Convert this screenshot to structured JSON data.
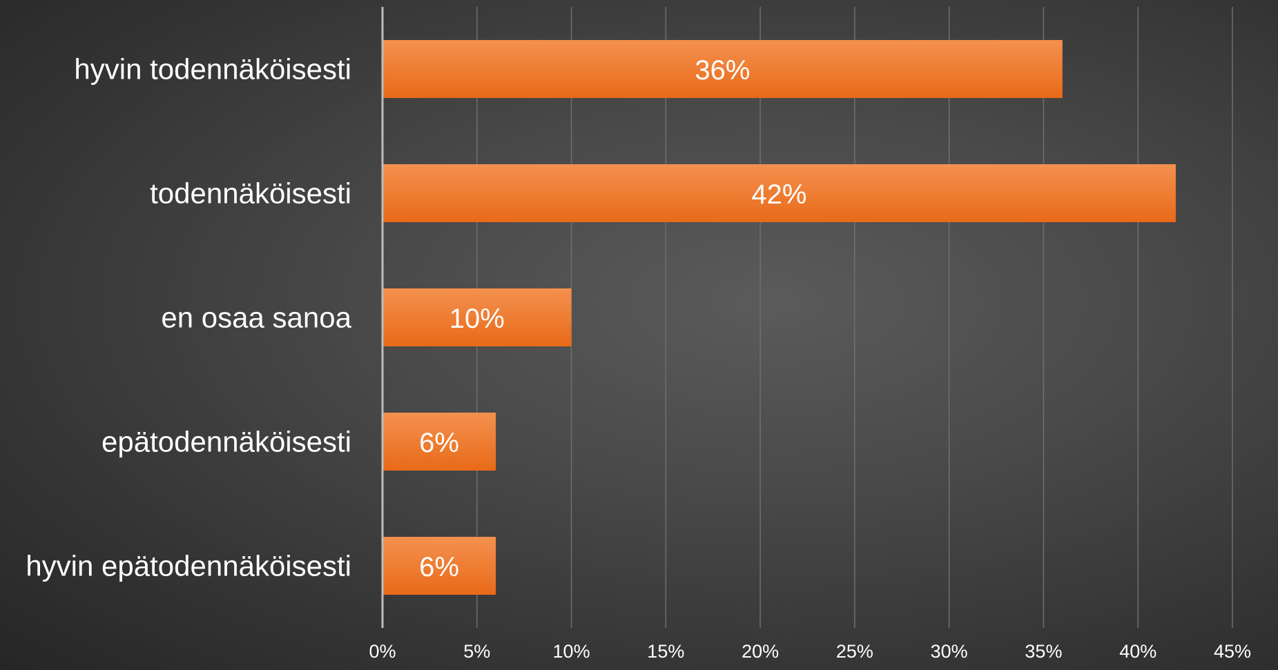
{
  "chart_data": {
    "type": "bar",
    "orientation": "horizontal",
    "categories": [
      "hyvin todennäköisesti",
      "todennäköisesti",
      "en osaa sanoa",
      "epätodennäköisesti",
      "hyvin epätodennäköisesti"
    ],
    "values": [
      36,
      42,
      10,
      6,
      6
    ],
    "data_labels": [
      "36%",
      "42%",
      "10%",
      "6%",
      "6%"
    ],
    "xlim": [
      0,
      45
    ],
    "x_ticks": [
      0,
      5,
      10,
      15,
      20,
      25,
      30,
      35,
      40,
      45
    ],
    "x_tick_labels": [
      "0%",
      "5%",
      "10%",
      "15%",
      "20%",
      "25%",
      "30%",
      "35%",
      "40%",
      "45%"
    ],
    "title": "",
    "xlabel": "",
    "ylabel": "",
    "grid": true,
    "legend": "none",
    "colors": {
      "bar": "#ee7a2e",
      "bar_top": "#f4914f",
      "bar_bottom": "#e86a18",
      "text": "#ffffff",
      "gridline": "#6f6f6f",
      "axis": "#bdbdbd"
    }
  }
}
